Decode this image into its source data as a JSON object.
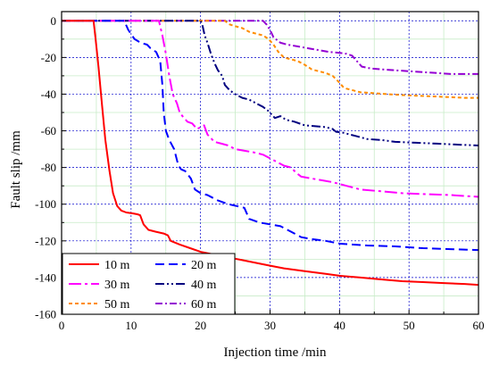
{
  "chart_data": {
    "type": "line",
    "title": "",
    "xlabel": "Injection time /min",
    "ylabel": "Fault slip /mm",
    "xlim": [
      0,
      60
    ],
    "ylim": [
      -160,
      5
    ],
    "xticks": [
      0,
      10,
      20,
      30,
      40,
      50,
      60
    ],
    "yticks": [
      0,
      -20,
      -40,
      -60,
      -80,
      -100,
      -120,
      -140,
      -160
    ],
    "grid": true,
    "legend_position": "bottom-left",
    "series": [
      {
        "name": "10 m",
        "color": "#ff0000",
        "dash": "solid",
        "x": [
          0,
          4.6,
          4.9,
          5.3,
          5.8,
          6.3,
          6.9,
          7.4,
          8.0,
          8.6,
          9.3,
          10.2,
          10.9,
          11.3,
          11.8,
          12.5,
          13.5,
          14.7,
          15.3,
          15.7,
          17.0,
          18.5,
          20.0,
          22.0,
          24.0,
          26.0,
          28.0,
          30.0,
          32.0,
          35.0,
          38.0,
          40.0,
          43.0,
          46.0,
          49.0,
          52.0,
          55.0,
          58.0,
          60.0
        ],
        "y": [
          0,
          0,
          -10,
          -25,
          -45,
          -65,
          -82,
          -94,
          -101,
          -103.5,
          -104.5,
          -105,
          -105.5,
          -106,
          -111,
          -114,
          -115,
          -116,
          -117,
          -120,
          -122,
          -124,
          -126,
          -127.5,
          -129,
          -130.5,
          -132,
          -133.5,
          -135,
          -136.5,
          -138,
          -139,
          -140,
          -141,
          -142,
          -142.5,
          -143,
          -143.5,
          -144
        ]
      },
      {
        "name": "20 m",
        "color": "#0000ff",
        "dash": "10 5",
        "x": [
          0,
          9.0,
          9.6,
          10.5,
          11.4,
          12.3,
          12.8,
          13.6,
          14.2,
          14.5,
          14.7,
          15.0,
          15.5,
          16.2,
          16.8,
          17.2,
          17.8,
          18.6,
          19.2,
          20.0,
          21.0,
          22.5,
          24.0,
          25.2,
          26.3,
          27.0,
          28.5,
          30.0,
          31.5,
          33.0,
          34.5,
          36.0,
          38.0,
          40.0,
          44.0,
          48.0,
          52.0,
          56.0,
          60.0
        ],
        "y": [
          0,
          0,
          -5,
          -10,
          -12,
          -13,
          -15,
          -17,
          -22,
          -35,
          -50,
          -60,
          -65,
          -70,
          -79,
          -81,
          -82,
          -86,
          -92,
          -94,
          -95,
          -98,
          -100,
          -101,
          -102,
          -108,
          -110,
          -111,
          -112,
          -115,
          -118,
          -119,
          -120,
          -121.5,
          -122.5,
          -123,
          -124,
          -124.5,
          -125
        ]
      },
      {
        "name": "30 m",
        "color": "#ff00ff",
        "dash": "14 4 3 4",
        "x": [
          0,
          14.0,
          14.5,
          15.0,
          15.5,
          16.0,
          16.6,
          17.0,
          17.4,
          18.1,
          18.8,
          19.5,
          20.5,
          21.0,
          21.5,
          22.0,
          23.0,
          24.0,
          25.0,
          26.5,
          28.0,
          29.0,
          30.5,
          32.0,
          33.0,
          33.8,
          34.5,
          36.0,
          37.5,
          39.0,
          40.0,
          41.0,
          42.0,
          43.0,
          46.0,
          49.0,
          52.0,
          56.0,
          60.0
        ],
        "y": [
          0,
          0,
          -8,
          -18,
          -30,
          -40,
          -45,
          -50,
          -52,
          -55,
          -56,
          -59,
          -57,
          -62,
          -64,
          -66,
          -67,
          -68,
          -70,
          -71,
          -72,
          -73,
          -76,
          -79,
          -80,
          -83,
          -85,
          -86,
          -87,
          -88,
          -89,
          -90,
          -91,
          -92,
          -93,
          -94,
          -94.5,
          -95,
          -96
        ]
      },
      {
        "name": "40 m",
        "color": "#000080",
        "dash": "10 3 2 3 2 3",
        "x": [
          0,
          20.0,
          20.3,
          20.6,
          21.0,
          21.5,
          22.0,
          22.5,
          23.1,
          23.5,
          24.2,
          25.0,
          26.0,
          27.0,
          28.0,
          29.0,
          29.7,
          30.7,
          31.5,
          32.3,
          33.5,
          35.0,
          36.5,
          38.0,
          39.0,
          39.5,
          40.5,
          41.5,
          42.5,
          44.0,
          46.0,
          48.0,
          51.0,
          54.0,
          57.0,
          60.0
        ],
        "y": [
          0,
          0,
          -3,
          -8,
          -12,
          -18,
          -23,
          -27,
          -30,
          -35,
          -38,
          -40,
          -42,
          -43,
          -45,
          -47,
          -49,
          -53,
          -52,
          -54,
          -55,
          -57,
          -57.5,
          -58,
          -59,
          -60.5,
          -61,
          -62,
          -63,
          -64.5,
          -65,
          -66,
          -66.5,
          -67,
          -67.5,
          -68
        ]
      },
      {
        "name": "50 m",
        "color": "#ff8c00",
        "dash": "4 3",
        "x": [
          0,
          23.5,
          24.2,
          25.0,
          26.0,
          27.0,
          28.0,
          29.0,
          29.8,
          30.5,
          31.2,
          32.0,
          33.0,
          34.0,
          35.0,
          36.0,
          37.0,
          38.0,
          39.0,
          39.8,
          40.5,
          41.0,
          42.0,
          43.0,
          45.0,
          47.0,
          49.0,
          52.0,
          55.0,
          58.0,
          60.0
        ],
        "y": [
          0,
          0,
          -2,
          -3,
          -4,
          -6,
          -7,
          -8,
          -10,
          -13,
          -17,
          -20,
          -21,
          -22,
          -24,
          -26.5,
          -27.5,
          -28.5,
          -30,
          -33,
          -36,
          -37,
          -38,
          -39,
          -39.5,
          -40,
          -40.5,
          -41,
          -41.5,
          -42,
          -42
        ]
      },
      {
        "name": "60 m",
        "color": "#9400d3",
        "dash": "8 3 2 3",
        "x": [
          0,
          29.0,
          29.5,
          30.0,
          30.5,
          31.5,
          32.5,
          34.0,
          35.5,
          37.0,
          38.5,
          40.0,
          41.0,
          41.8,
          42.5,
          43.2,
          44.5,
          46.0,
          48.0,
          50.0,
          52.0,
          54.0,
          56.0,
          58.0,
          60.0
        ],
        "y": [
          0,
          0,
          -2,
          -5,
          -9,
          -12,
          -13,
          -14,
          -15,
          -16,
          -17,
          -17.5,
          -18,
          -19,
          -22,
          -25,
          -26,
          -26.5,
          -27,
          -27.5,
          -28,
          -28.5,
          -29,
          -29,
          -29
        ]
      }
    ]
  },
  "legend": [
    {
      "label": "10 m",
      "color": "#ff0000",
      "dash": "solid"
    },
    {
      "label": "20 m",
      "color": "#0000ff",
      "dash": "10 5"
    },
    {
      "label": "30 m",
      "color": "#ff00ff",
      "dash": "14 4 3 4"
    },
    {
      "label": "40 m",
      "color": "#000080",
      "dash": "10 3 2 3 2 3"
    },
    {
      "label": "50 m",
      "color": "#ff8c00",
      "dash": "4 3"
    },
    {
      "label": "60 m",
      "color": "#9400d3",
      "dash": "8 3 2 3"
    }
  ]
}
